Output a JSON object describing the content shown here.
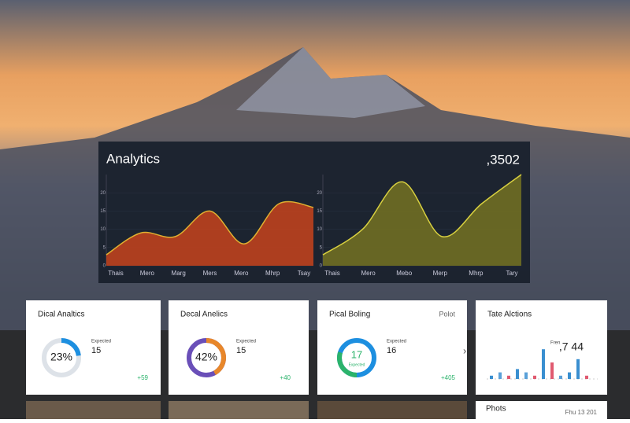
{
  "panel": {
    "title": "Analytics",
    "total": ",3502",
    "charts": [
      {
        "type": "area",
        "color": "#b5401f",
        "line_color": "#e0b030",
        "categories": [
          "Thais",
          "Mero",
          "Marg",
          "Mers",
          "Mero",
          "Mhrp",
          "Tsay"
        ],
        "values": [
          3,
          9,
          8,
          15,
          6,
          17,
          16
        ],
        "ylim": [
          0,
          25
        ],
        "yticks": [
          0,
          5,
          10,
          15,
          20
        ]
      },
      {
        "type": "area",
        "color": "#6b6a24",
        "line_color": "#d8d040",
        "categories": [
          "Thais",
          "Mero",
          "Mebo",
          "Merp",
          "Mhrp",
          "Tary"
        ],
        "values": [
          3,
          10,
          23,
          8,
          17,
          25
        ],
        "ylim": [
          0,
          25
        ],
        "yticks": [
          0,
          5,
          10,
          15,
          20
        ]
      }
    ]
  },
  "cards": [
    {
      "title": "Dical Analtics",
      "percent": 23,
      "percent_label": "23%",
      "sub_label": "Expected",
      "sub_value": "15",
      "change": "+59",
      "color": "#1d8fe0"
    },
    {
      "title": "Decal Anelics",
      "percent": 42,
      "percent_label": "42%",
      "sub_label": "Expected",
      "sub_value": "15",
      "change": "+40",
      "color": "#e8872a"
    },
    {
      "title": "Pical Boling",
      "corner": "Polot",
      "center_value": "17",
      "center_sub": "Expected",
      "sub_label": "Expected",
      "sub_value": "16",
      "change": "+405"
    },
    {
      "title": "Tate Alctions",
      "sub_label": "Fren",
      "sub_value": ",7 44",
      "bars": [
        1,
        2,
        1,
        3,
        2,
        1,
        9,
        5,
        1,
        2,
        6,
        1
      ],
      "bar_colors": [
        "#3a8fd0",
        "#5aa0d8",
        "#e05a70",
        "#3a8fd0",
        "#5aa0d8",
        "#e05a70",
        "#3a8fd0",
        "#e05a70",
        "#5aa0d8",
        "#3a8fd0",
        "#3a8fd0",
        "#e05a70"
      ]
    }
  ],
  "photos": {
    "title": "Phots",
    "date": "Fhu 13 201"
  }
}
